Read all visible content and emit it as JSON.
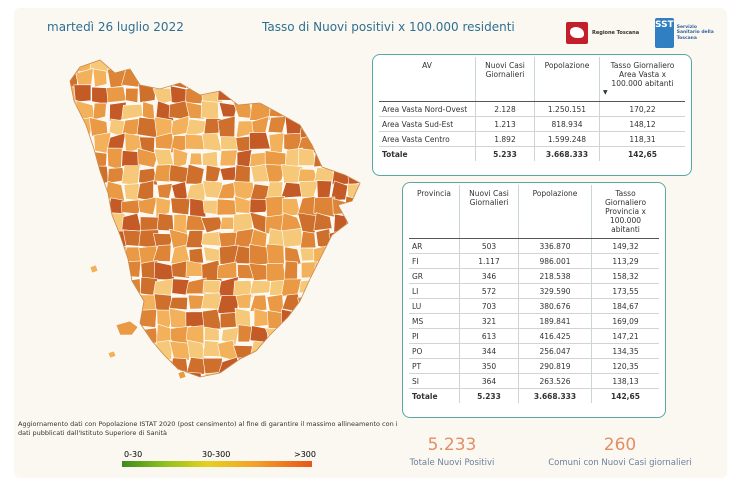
{
  "header": {
    "date": "martedì 26 luglio 2022",
    "title": "Tasso di Nuovi positivi x 100.000 residenti",
    "logo_regione": "Regione Toscana",
    "logo_sst_mark": "SST",
    "logo_sst_text": "Servizio Sanitario della Toscana"
  },
  "area_vasta_table": {
    "headers": [
      "AV",
      "Nuovi Casi Giornalieri",
      "Popolazione",
      "Tasso Giornaliero Area Vasta x 100.000 abitanti"
    ],
    "rows": [
      [
        "Area Vasta Nord-Ovest",
        "2.128",
        "1.250.151",
        "170,22"
      ],
      [
        "Area Vasta Sud-Est",
        "1.213",
        "818.934",
        "148,12"
      ],
      [
        "Area Vasta Centro",
        "1.892",
        "1.599.248",
        "118,31"
      ]
    ],
    "total": [
      "Totale",
      "5.233",
      "3.668.333",
      "142,65"
    ]
  },
  "provincia_table": {
    "headers": [
      "Provincia",
      "Nuovi Casi Giornalieri",
      "Popolazione",
      "Tasso Giornaliero Provincia x 100.000 abitanti"
    ],
    "rows": [
      [
        "AR",
        "503",
        "336.870",
        "149,32"
      ],
      [
        "FI",
        "1.117",
        "986.001",
        "113,29"
      ],
      [
        "GR",
        "346",
        "218.538",
        "158,32"
      ],
      [
        "LI",
        "572",
        "329.590",
        "173,55"
      ],
      [
        "LU",
        "703",
        "380.676",
        "184,67"
      ],
      [
        "MS",
        "321",
        "189.841",
        "169,09"
      ],
      [
        "PI",
        "613",
        "416.425",
        "147,21"
      ],
      [
        "PO",
        "344",
        "256.047",
        "134,35"
      ],
      [
        "PT",
        "350",
        "290.819",
        "120,35"
      ],
      [
        "SI",
        "364",
        "263.526",
        "138,13"
      ]
    ],
    "total": [
      "Totale",
      "5.233",
      "3.668.333",
      "142,65"
    ]
  },
  "footnote": "Aggiornamento dati con Popolazione ISTAT 2020 (post censimento) al fine di garantire il massimo allineamento con i dati pubblicati dall'Istituto Superiore di Sanità",
  "legend": {
    "labels": [
      "0-30",
      "30-300",
      ">300"
    ],
    "colors": [
      "#3b8c1e",
      "#e6d11e",
      "#e8551b"
    ]
  },
  "kpis": {
    "total_value": "5.233",
    "total_label": "Totale Nuovi Positivi",
    "comuni_value": "260",
    "comuni_label": "Comuni con Nuovi Casi giornalieri"
  },
  "map": {
    "fill_colors": [
      "#f2b15a",
      "#ea9a44",
      "#dd8436",
      "#cf6f2c",
      "#c45a26",
      "#f6c97a"
    ],
    "border_color": "#ffffff"
  }
}
